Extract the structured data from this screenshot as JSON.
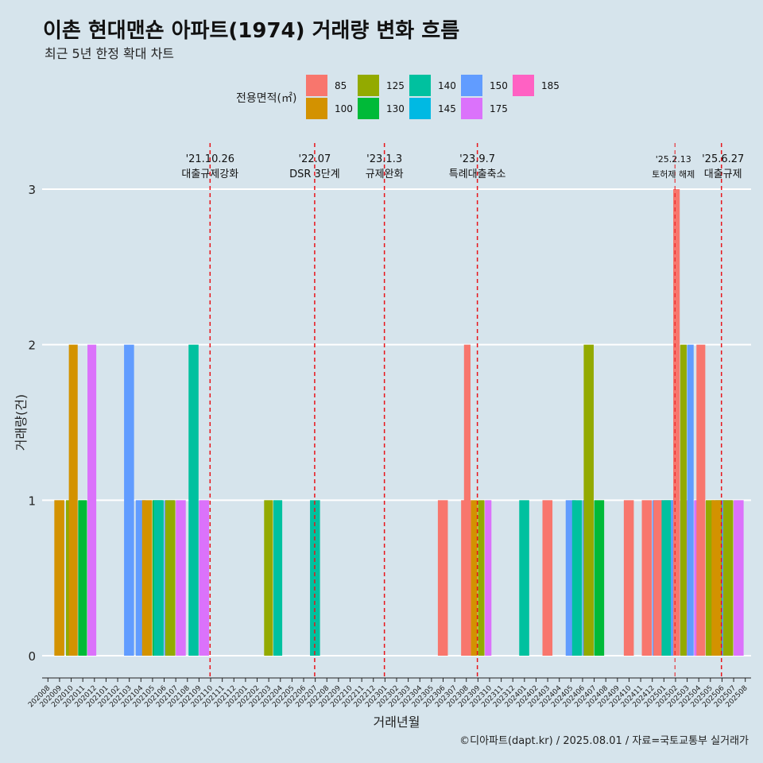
{
  "header": {
    "title": "이촌 현대맨숀 아파트(1974) 거래량 변화 흐름",
    "subtitle": "최근 5년 한정 확대 차트"
  },
  "footer": "©디아파트(dapt.kr) / 2025.08.01 / 자료=국토교통부 실거래가",
  "colors": {
    "background": "#d6e4ec",
    "85": "#F8766D",
    "100": "#D39200",
    "125": "#93AA00",
    "130": "#00BA38",
    "140": "#00C19F",
    "145": "#00B9E3",
    "150": "#619CFF",
    "175": "#DB72FB",
    "185": "#FF61C3",
    "event_line": "#e8141a"
  },
  "chart_data": {
    "type": "bar",
    "xlabel": "거래년월",
    "ylabel": "거래량(건)",
    "ylim": [
      0,
      3
    ],
    "yticks": [
      0,
      1,
      2,
      3
    ],
    "grid": true,
    "legend": {
      "title": "전용면적(㎡)",
      "position": "top",
      "entries": [
        "85",
        "100",
        "125",
        "130",
        "140",
        "145",
        "150",
        "175",
        "185"
      ]
    },
    "categories": [
      "202008",
      "202009",
      "202010",
      "202011",
      "202012",
      "202101",
      "202102",
      "202103",
      "202104",
      "202105",
      "202106",
      "202107",
      "202108",
      "202109",
      "202110",
      "202111",
      "202112",
      "202201",
      "202202",
      "202203",
      "202204",
      "202205",
      "202206",
      "202207",
      "202208",
      "202209",
      "202210",
      "202211",
      "202212",
      "202301",
      "202302",
      "202303",
      "202304",
      "202305",
      "202306",
      "202307",
      "202308",
      "202309",
      "202310",
      "202311",
      "202312",
      "202401",
      "202402",
      "202403",
      "202404",
      "202405",
      "202406",
      "202407",
      "202408",
      "202409",
      "202410",
      "202411",
      "202412",
      "202501",
      "202502",
      "202503",
      "202504",
      "202505",
      "202506",
      "202507",
      "202508"
    ],
    "series": [
      {
        "name": "85",
        "values": {
          "202306": 1,
          "202308": 1,
          "202309": 2,
          "202403": 1,
          "202410": 1,
          "202412": 1,
          "202501": 1,
          "202503": 3,
          "202505": 2
        }
      },
      {
        "name": "100",
        "values": {
          "202009": 1,
          "202011": 2,
          "202105": 1,
          "202203": 0,
          "202309": 1,
          "202506": 1
        }
      },
      {
        "name": "125",
        "values": {
          "202010": 1,
          "202107": 1,
          "202203": 1,
          "202309": 1,
          "202407": 2,
          "202503": 2,
          "202505": 1,
          "202507": 1
        }
      },
      {
        "name": "130",
        "values": {
          "202011": 1,
          "202105": 1,
          "202407": 1,
          "202505": 1
        }
      },
      {
        "name": "140",
        "values": {
          "202106": 1,
          "202109": 2,
          "202203": 1,
          "202207": 1,
          "202401": 1,
          "202406": 1,
          "202501": 1,
          "202502": 1
        }
      },
      {
        "name": "145",
        "values": {}
      },
      {
        "name": "150",
        "values": {
          "202103": 2,
          "202104": 1,
          "202106": 1,
          "202405": 1,
          "202406": 1,
          "202412": 1,
          "202502": 1,
          "202503": 2,
          "202506": 1
        }
      },
      {
        "name": "175",
        "values": {
          "202011": 2,
          "202107": 1,
          "202109": 1,
          "202309": 1,
          "202502": 1,
          "202503": 1,
          "202507": 1
        }
      },
      {
        "name": "185",
        "values": {}
      }
    ],
    "events": [
      {
        "month": "202110",
        "date": "'21.10.26",
        "label": "대출규제강화"
      },
      {
        "month": "202207",
        "date": "'22.07",
        "label": "DSR 3단계"
      },
      {
        "month": "202301",
        "date": "'23.1.3",
        "label": "규제완화"
      },
      {
        "month": "202309",
        "date": "'23.9.7",
        "label": "특례대출축소"
      },
      {
        "month": "202502",
        "date": "'25.2.13",
        "label": "토허제 해제"
      },
      {
        "month": "202506",
        "date": "'25.6.27",
        "label": "대출규제"
      }
    ]
  }
}
